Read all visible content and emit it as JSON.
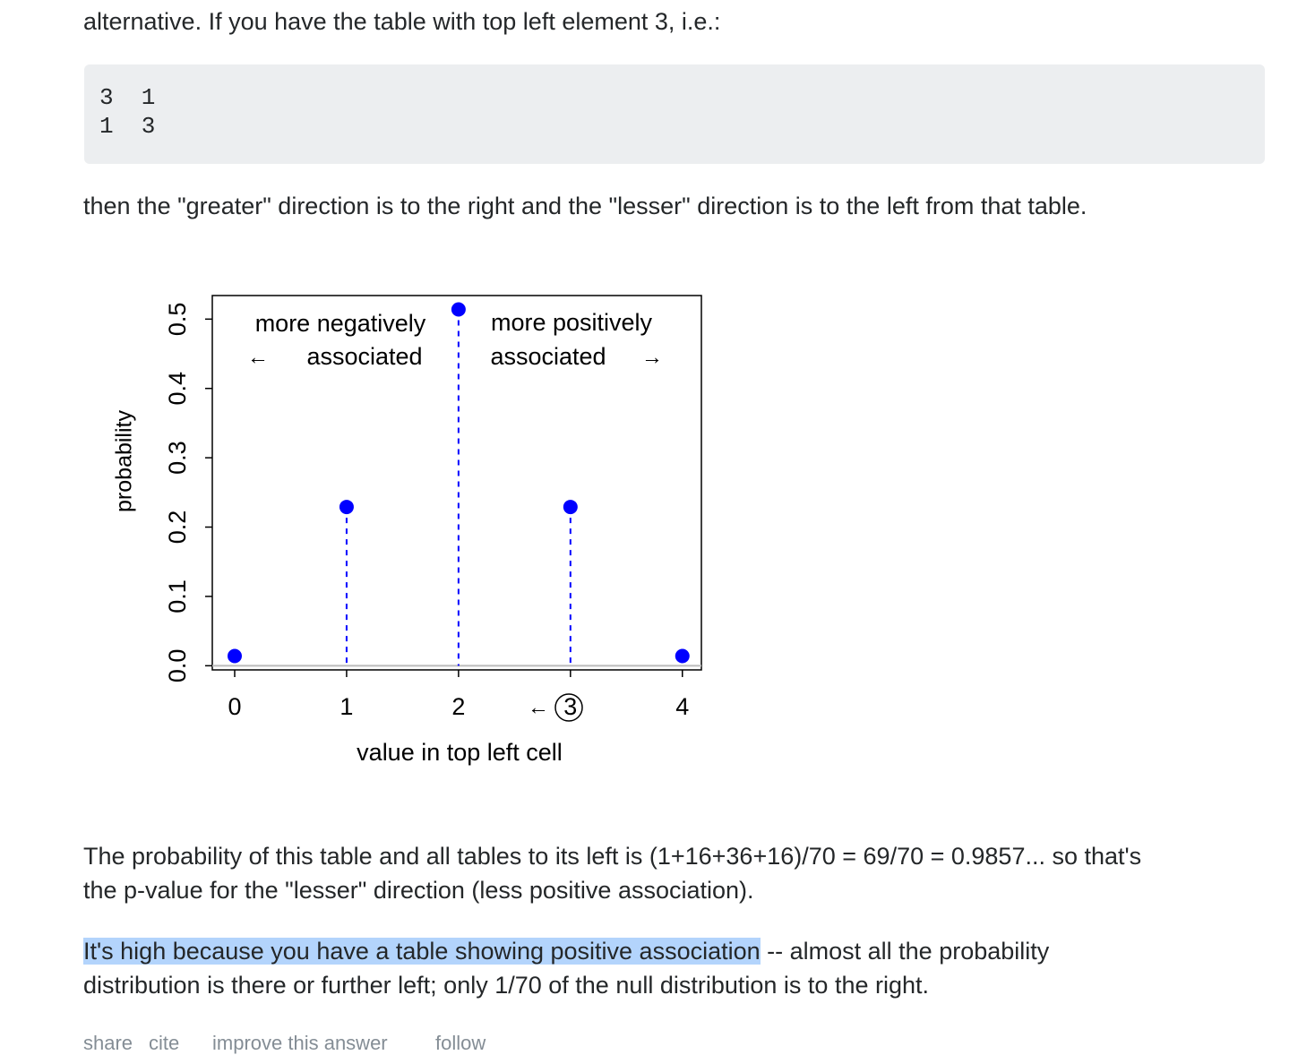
{
  "intro": "alternative. If you have the table with top left element 3, i.e.:",
  "code_lines": [
    "3  1",
    "1  3"
  ],
  "after_code": "then the \"greater\" direction is to the right and the \"lesser\" direction is to the left from that table.",
  "chart_data": {
    "type": "stem",
    "x": [
      0,
      1,
      2,
      3,
      4
    ],
    "values": [
      0.014,
      0.229,
      0.514,
      0.229,
      0.014
    ],
    "color": "#0000ff",
    "xlim": [
      -0.2,
      4.17
    ],
    "ylim": [
      -0.006,
      0.534
    ],
    "xticks": [
      0,
      1,
      2,
      3,
      4
    ],
    "yticks": [
      {
        "value": 0,
        "label": "0.0"
      },
      0.1,
      0.2,
      0.3,
      0.4,
      0.5
    ],
    "xlabel": "value in top left cell",
    "ylabel": "probability",
    "annotations": {
      "neg_line1": "more negatively",
      "neg_line2": "associated",
      "neg_arrow": "←",
      "pos_line1": "more positively",
      "pos_line2": "associated",
      "pos_arrow": "→",
      "observed_arrow": "←"
    }
  },
  "paragraph_1": [
    "The probability of this table and all tables to its left is (1+16+36+16)/70 = 69/70 = 0.9857... so that's",
    "the p-value for the \"lesser\" direction (less positive association)."
  ],
  "paragraph_2": {
    "highlight": "It's high because you have a table showing positive association",
    "line1_rest": " -- almost all the probability",
    "line2": "distribution is there or further left; only 1/70 of the null distribution is to the right."
  },
  "footer": [
    "share",
    "cite",
    "improve this answer",
    "follow"
  ]
}
